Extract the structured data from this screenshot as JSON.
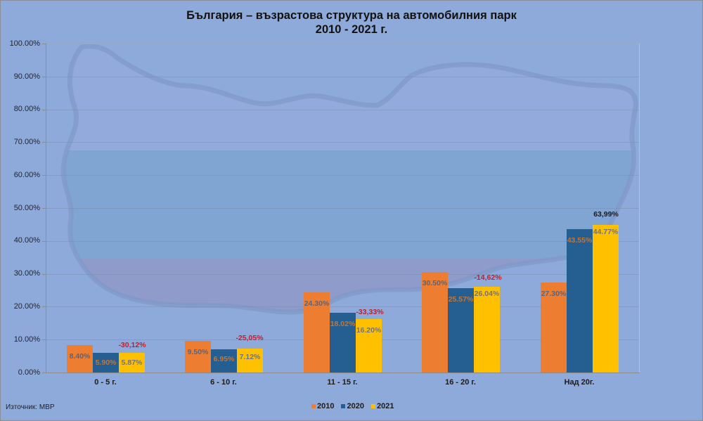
{
  "chart": {
    "title_line1": "България – възрастова структура на автомобилния парк",
    "title_line2": "2010 - 2021 г.",
    "source": "Източник: МВР",
    "y_ticks": [
      "100.00%",
      "90.00%",
      "80.00%",
      "70.00%",
      "60.00%",
      "50.00%",
      "40.00%",
      "30.00%",
      "20.00%",
      "10.00%",
      "0.00%"
    ],
    "categories": [
      "0 - 5 г.",
      "6 - 10 г.",
      "11 - 15 г.",
      "16 - 20 г.",
      "Над 20г."
    ],
    "legend": [
      {
        "label": "2010",
        "color": "#ed7d31"
      },
      {
        "label": "2020",
        "color": "#255e91"
      },
      {
        "label": "2021",
        "color": "#ffc000"
      }
    ],
    "bars": [
      {
        "l2010": "8.40%",
        "l2020": "5.90%",
        "l2021": "5.87%",
        "change": "-30,12%"
      },
      {
        "l2010": "9.50%",
        "l2020": "6.95%",
        "l2021": "7.12%",
        "change": "-25,05%"
      },
      {
        "l2010": "24.30%",
        "l2020": "18.02%",
        "l2021": "16.20%",
        "change": "-33,33%"
      },
      {
        "l2010": "30.50%",
        "l2020": "25.57%",
        "l2021": "26.04%",
        "change": "-14,62%"
      },
      {
        "l2010": "27.30%",
        "l2020": "43.55%",
        "l2021": "44.77%",
        "change": "63,99%"
      }
    ]
  },
  "chart_data": {
    "type": "bar",
    "title": "България – възрастова структура на автомобилния парк 2010 - 2021 г.",
    "xlabel": "",
    "ylabel": "",
    "ylim": [
      0,
      100
    ],
    "y_tick_format": "percent",
    "grid": true,
    "legend_position": "bottom",
    "categories": [
      "0 - 5 г.",
      "6 - 10 г.",
      "11 - 15 г.",
      "16 - 20 г.",
      "Над 20г."
    ],
    "series": [
      {
        "name": "2010",
        "color": "#ed7d31",
        "values": [
          8.4,
          9.5,
          24.3,
          30.5,
          27.3
        ]
      },
      {
        "name": "2020",
        "color": "#255e91",
        "values": [
          5.9,
          6.95,
          18.02,
          25.57,
          43.55
        ]
      },
      {
        "name": "2021",
        "color": "#ffc000",
        "values": [
          5.87,
          7.12,
          16.2,
          26.04,
          44.77
        ]
      }
    ],
    "annotations": [
      {
        "category": "0 - 5 г.",
        "text": "-30,12%"
      },
      {
        "category": "6 - 10 г.",
        "text": "-25,05%"
      },
      {
        "category": "11 - 15 г.",
        "text": "-33,33%"
      },
      {
        "category": "16 - 20 г.",
        "text": "-14,62%"
      },
      {
        "category": "Над 20г.",
        "text": "63,99%"
      }
    ],
    "source": "Източник: МВР"
  }
}
